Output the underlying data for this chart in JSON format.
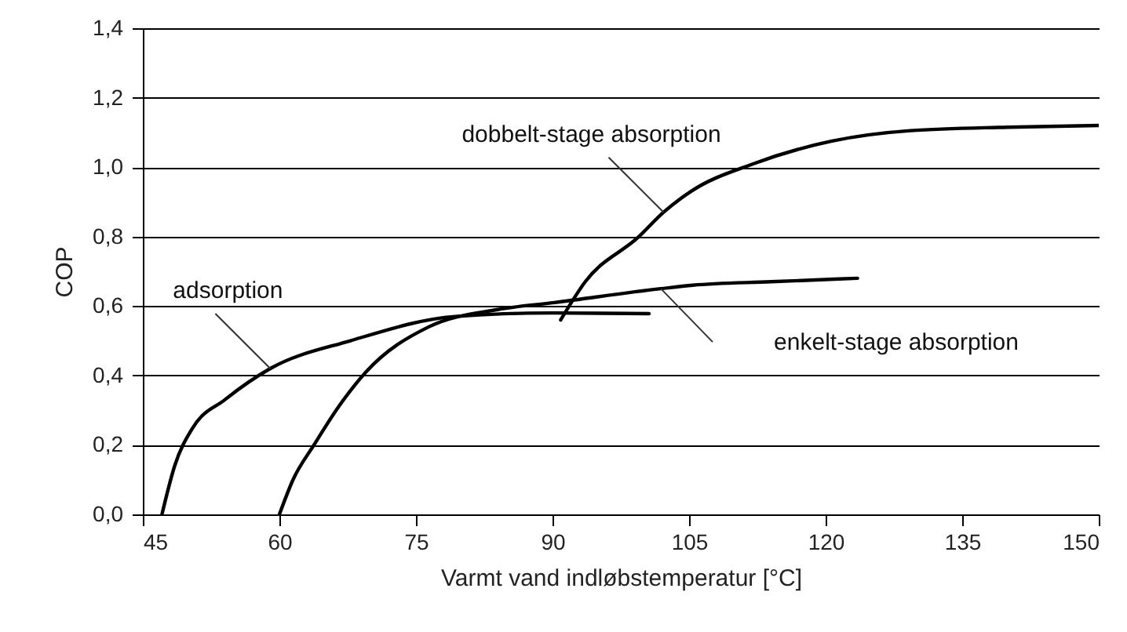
{
  "chart_data": {
    "type": "line",
    "xlabel": "Varmt vand indløbstemperatur [°C]",
    "ylabel": "COP",
    "xlim": [
      45,
      150
    ],
    "xticks": [
      45,
      60,
      75,
      90,
      105,
      120,
      135,
      150
    ],
    "ylim": [
      0,
      1.4
    ],
    "yticks": [
      {
        "value": 0,
        "label": "0,0"
      },
      {
        "value": 0.2,
        "label": "0,2"
      },
      {
        "value": 0.4,
        "label": "0,4"
      },
      {
        "value": 0.6,
        "label": "0,6"
      },
      {
        "value": 0.8,
        "label": "0,8"
      },
      {
        "value": 1.0,
        "label": "1,0"
      },
      {
        "value": 1.2,
        "label": "1,2"
      },
      {
        "value": 1.4,
        "label": "1,4"
      }
    ],
    "grid": "y",
    "legend": false,
    "marker": "none",
    "line_style": "solid",
    "series": [
      {
        "name": "adsorption",
        "color": "#000000",
        "x": [
          47.1,
          48.5,
          50.5,
          54,
          59,
          67.8,
          79.3,
          90,
          100.6
        ],
        "values": [
          0,
          0.14,
          0.25,
          0.33,
          0.42,
          0.5,
          0.57,
          0.58,
          0.578
        ]
      },
      {
        "name": "dobbelt-stage absorption",
        "color": "#000000",
        "x": [
          90.9,
          93.6,
          99.5,
          102.2,
          105.2,
          112.1,
          120.7,
          129.3,
          140,
          150
        ],
        "values": [
          0.56,
          0.67,
          0.8,
          0.87,
          0.93,
          1.01,
          1.075,
          1.105,
          1.115,
          1.12
        ]
      },
      {
        "name": "enkelt-stage absorption",
        "color": "#000000",
        "x": [
          60,
          61.5,
          63.8,
          66.5,
          69.5,
          76.4,
          84,
          90.2,
          101.9,
          105.4,
          114,
          123.5
        ],
        "values": [
          0,
          0.1,
          0.2,
          0.31,
          0.41,
          0.54,
          0.59,
          0.61,
          0.65,
          0.66,
          0.67,
          0.68
        ]
      }
    ]
  }
}
